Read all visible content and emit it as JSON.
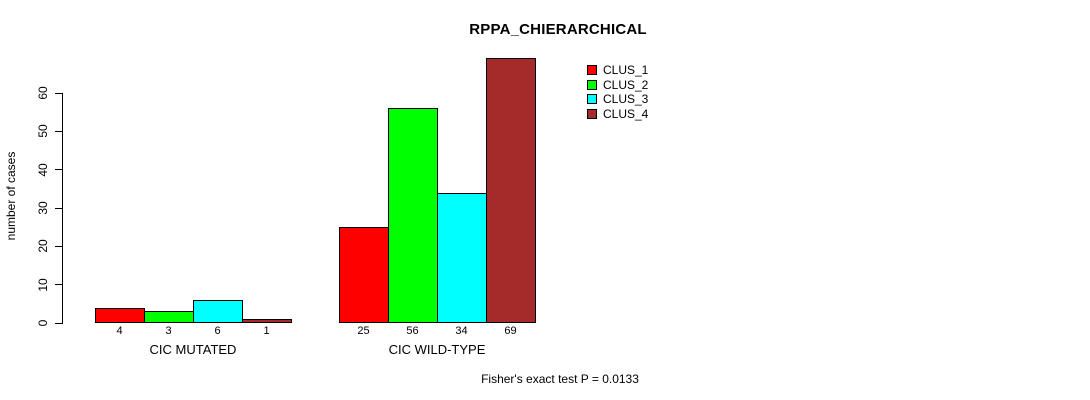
{
  "chart_data": {
    "type": "bar",
    "title": "RPPA_CHIERARCHICAL",
    "ylabel": "number of cases",
    "annotation": "Fisher's exact test P = 0.0133",
    "ylim": [
      0,
      60
    ],
    "yticks": [
      0,
      10,
      20,
      30,
      40,
      50,
      60
    ],
    "grid": false,
    "legend_position": "top-right",
    "categories": [
      "CIC MUTATED",
      "CIC WILD-TYPE"
    ],
    "groups": [
      {
        "label": "CIC MUTATED",
        "values": [
          4,
          3,
          6,
          1
        ]
      },
      {
        "label": "CIC WILD-TYPE",
        "values": [
          25,
          56,
          34,
          69
        ]
      }
    ],
    "series": [
      {
        "name": "CLUS_1",
        "color": "#FF0000"
      },
      {
        "name": "CLUS_2",
        "color": "#00FF00"
      },
      {
        "name": "CLUS_3",
        "color": "#00FFFF"
      },
      {
        "name": "CLUS_4",
        "color": "#A52A2A"
      }
    ]
  },
  "colors": {
    "background": "#FFFFFF",
    "axis": "#000000",
    "text": "#000000"
  }
}
